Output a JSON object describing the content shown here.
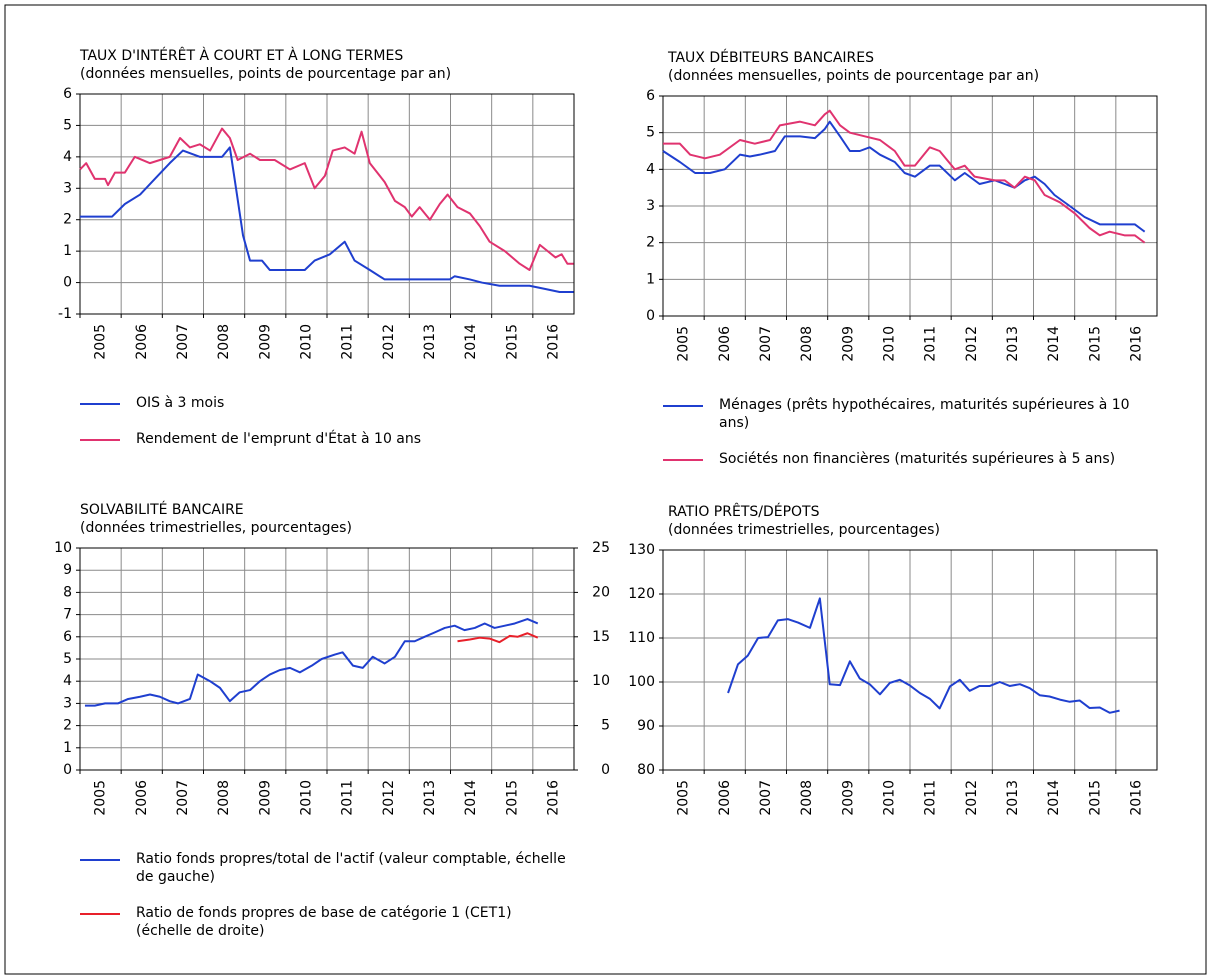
{
  "chart_data": [
    {
      "type": "line",
      "title": "TAUX D'INTÉRÊT À COURT ET À LONG TERMES",
      "subtitle": "(données mensuelles, points de pourcentage par an)",
      "xlim": [
        2005,
        2017
      ],
      "xticks": [
        2005,
        2006,
        2007,
        2008,
        2009,
        2010,
        2011,
        2012,
        2013,
        2014,
        2015,
        2016
      ],
      "ylim": [
        -1,
        6
      ],
      "yticks": [
        6,
        5,
        4,
        3,
        2,
        1,
        0,
        -1
      ],
      "grid": true,
      "legend": "bottom",
      "series": [
        {
          "name": "OIS à 3 mois",
          "color": "#1f3fcf",
          "x": [
            2005.0,
            2005.78,
            2006.09,
            2006.46,
            2006.82,
            2007.18,
            2007.5,
            2007.91,
            2008.45,
            2008.64,
            2008.79,
            2008.96,
            2009.13,
            2009.42,
            2009.61,
            2010.46,
            2010.7,
            2011.07,
            2011.43,
            2011.67,
            2012.04,
            2012.4,
            2013.98,
            2014.1,
            2014.47,
            2014.76,
            2015.19,
            2015.92,
            2016.29,
            2016.65,
            2016.99
          ],
          "values": [
            2.1,
            2.1,
            2.5,
            2.8,
            3.3,
            3.8,
            4.2,
            4.0,
            4.0,
            4.3,
            3.0,
            1.5,
            0.7,
            0.7,
            0.4,
            0.4,
            0.7,
            0.9,
            1.3,
            0.7,
            0.4,
            0.1,
            0.1,
            0.2,
            0.1,
            0.0,
            -0.1,
            -0.1,
            -0.2,
            -0.3,
            -0.3
          ]
        },
        {
          "name": "Rendement de l'emprunt d'État à 10 ans",
          "color": "#e0336f",
          "x": [
            2005.0,
            2005.15,
            2005.36,
            2005.61,
            2005.68,
            2005.85,
            2006.09,
            2006.33,
            2006.7,
            2006.94,
            2007.18,
            2007.43,
            2007.67,
            2007.91,
            2008.16,
            2008.45,
            2008.64,
            2008.83,
            2009.13,
            2009.37,
            2009.73,
            2010.1,
            2010.46,
            2010.7,
            2010.95,
            2011.14,
            2011.43,
            2011.67,
            2011.84,
            2012.04,
            2012.4,
            2012.65,
            2012.89,
            2013.06,
            2013.25,
            2013.5,
            2013.74,
            2013.93,
            2014.17,
            2014.47,
            2014.71,
            2014.95,
            2015.32,
            2015.68,
            2015.92,
            2016.17,
            2016.36,
            2016.55,
            2016.7,
            2016.84,
            2016.99
          ],
          "values": [
            3.6,
            3.8,
            3.3,
            3.3,
            3.1,
            3.5,
            3.5,
            4.0,
            3.8,
            3.9,
            4.0,
            4.6,
            4.3,
            4.4,
            4.2,
            4.9,
            4.6,
            3.9,
            4.1,
            3.9,
            3.9,
            3.6,
            3.8,
            3.0,
            3.4,
            4.2,
            4.3,
            4.1,
            4.8,
            3.8,
            3.2,
            2.6,
            2.4,
            2.1,
            2.4,
            2.0,
            2.5,
            2.8,
            2.4,
            2.2,
            1.8,
            1.3,
            1.0,
            0.6,
            0.4,
            1.2,
            1.0,
            0.8,
            0.9,
            0.6,
            0.6
          ]
        }
      ]
    },
    {
      "type": "line",
      "title": "TAUX DÉBITEURS BANCAIRES",
      "subtitle": "(données mensuelles, points de pourcentage par an)",
      "xlim": [
        2005,
        2017
      ],
      "xticks": [
        2005,
        2006,
        2007,
        2008,
        2009,
        2010,
        2011,
        2012,
        2013,
        2014,
        2015,
        2016
      ],
      "ylim": [
        0,
        6
      ],
      "yticks": [
        6,
        5,
        4,
        3,
        2,
        1,
        0
      ],
      "grid": true,
      "legend": "bottom",
      "series": [
        {
          "name": "Ménages (prêts hypothécaires, maturités supérieures à 10 ans)",
          "color": "#1f3fcf",
          "x": [
            2005.0,
            2005.41,
            2005.78,
            2006.14,
            2006.5,
            2006.87,
            2007.11,
            2007.35,
            2007.72,
            2007.96,
            2008.33,
            2008.69,
            2008.93,
            2009.05,
            2009.3,
            2009.54,
            2009.78,
            2010.02,
            2010.27,
            2010.63,
            2010.87,
            2011.12,
            2011.48,
            2011.72,
            2012.09,
            2012.33,
            2012.69,
            2013.06,
            2013.3,
            2013.54,
            2013.79,
            2014.03,
            2014.27,
            2014.51,
            2014.88,
            2015.24,
            2015.61,
            2015.85,
            2016.21,
            2016.46,
            2016.7
          ],
          "values": [
            4.5,
            4.2,
            3.9,
            3.9,
            4.0,
            4.4,
            4.35,
            4.4,
            4.5,
            4.9,
            4.9,
            4.85,
            5.1,
            5.3,
            4.9,
            4.5,
            4.5,
            4.6,
            4.4,
            4.2,
            3.9,
            3.8,
            4.1,
            4.1,
            3.7,
            3.9,
            3.6,
            3.7,
            3.6,
            3.5,
            3.7,
            3.8,
            3.6,
            3.3,
            3.0,
            2.7,
            2.5,
            2.5,
            2.5,
            2.5,
            2.3
          ]
        },
        {
          "name": "Sociétés non financières (maturités supérieures à 5 ans)",
          "color": "#e0336f",
          "x": [
            2005.0,
            2005.41,
            2005.66,
            2006.02,
            2006.38,
            2006.87,
            2007.23,
            2007.6,
            2007.84,
            2008.33,
            2008.69,
            2008.93,
            2009.05,
            2009.3,
            2009.54,
            2009.9,
            2010.27,
            2010.63,
            2010.87,
            2011.12,
            2011.48,
            2011.72,
            2012.09,
            2012.33,
            2012.57,
            2013.06,
            2013.3,
            2013.54,
            2013.79,
            2014.03,
            2014.27,
            2014.64,
            2015.0,
            2015.36,
            2015.61,
            2015.85,
            2016.21,
            2016.46,
            2016.7
          ],
          "values": [
            4.7,
            4.7,
            4.4,
            4.3,
            4.4,
            4.8,
            4.7,
            4.8,
            5.2,
            5.3,
            5.2,
            5.5,
            5.6,
            5.2,
            5.0,
            4.9,
            4.8,
            4.5,
            4.1,
            4.1,
            4.6,
            4.5,
            4.0,
            4.1,
            3.8,
            3.7,
            3.7,
            3.5,
            3.8,
            3.7,
            3.3,
            3.1,
            2.8,
            2.4,
            2.2,
            2.3,
            2.2,
            2.2,
            2.0
          ]
        }
      ]
    },
    {
      "type": "line",
      "title": "SOLVABILITÉ BANCAIRE",
      "subtitle": "(données trimestrielles, pourcentages)",
      "xlim": [
        2005,
        2017
      ],
      "xticks": [
        2005,
        2006,
        2007,
        2008,
        2009,
        2010,
        2011,
        2012,
        2013,
        2014,
        2015,
        2016
      ],
      "ylim": [
        0,
        10
      ],
      "yticks": [
        10,
        9,
        8,
        7,
        6,
        5,
        4,
        3,
        2,
        1,
        0
      ],
      "y2lim": [
        0,
        25
      ],
      "y2ticks": [
        25,
        20,
        15,
        10,
        5,
        0
      ],
      "grid": true,
      "legend": "bottom",
      "series": [
        {
          "name": "Ratio fonds propres/total de l'actif (valeur comptable, échelle de gauche)",
          "color": "#1f3fcf",
          "x": [
            2005.12,
            2005.36,
            2005.61,
            2005.92,
            2006.17,
            2006.46,
            2006.7,
            2006.94,
            2007.18,
            2007.38,
            2007.67,
            2007.86,
            2008.16,
            2008.4,
            2008.64,
            2008.88,
            2009.13,
            2009.37,
            2009.61,
            2009.85,
            2010.1,
            2010.34,
            2010.63,
            2010.87,
            2011.19,
            2011.38,
            2011.63,
            2011.87,
            2012.11,
            2012.4,
            2012.65,
            2012.89,
            2013.13,
            2013.37,
            2013.62,
            2013.86,
            2014.1,
            2014.34,
            2014.59,
            2014.83,
            2015.07,
            2015.32,
            2015.56,
            2015.87,
            2016.12
          ],
          "values": [
            2.9,
            2.9,
            3.0,
            3.0,
            3.2,
            3.3,
            3.4,
            3.3,
            3.1,
            3.0,
            3.2,
            4.3,
            4.0,
            3.7,
            3.1,
            3.5,
            3.6,
            4.0,
            4.3,
            4.5,
            4.6,
            4.4,
            4.7,
            5.0,
            5.2,
            5.3,
            4.7,
            4.6,
            5.1,
            4.8,
            5.1,
            5.8,
            5.8,
            6.0,
            6.2,
            6.4,
            6.5,
            6.3,
            6.4,
            6.6,
            6.4,
            6.5,
            6.6,
            6.8,
            6.6
          ]
        },
        {
          "name": "Ratio de fonds propres de base de catégorie 1 (CET1) (échelle de droite)",
          "color": "#e8202a",
          "axis": "y2",
          "x": [
            2014.17,
            2014.47,
            2014.71,
            2014.95,
            2015.19,
            2015.44,
            2015.63,
            2015.87,
            2016.12
          ],
          "values": [
            14.5,
            14.7,
            14.9,
            14.8,
            14.4,
            15.1,
            15.0,
            15.4,
            14.9
          ]
        }
      ]
    },
    {
      "type": "line",
      "title": "RATIO PRÊTS/DÉPOTS",
      "subtitle": "(données trimestrielles, pourcentages)",
      "xlim": [
        2005,
        2017
      ],
      "xticks": [
        2005,
        2006,
        2007,
        2008,
        2009,
        2010,
        2011,
        2012,
        2013,
        2014,
        2015,
        2016
      ],
      "ylim": [
        80,
        130
      ],
      "yticks": [
        130,
        120,
        110,
        100,
        90,
        80
      ],
      "grid": true,
      "series": [
        {
          "color": "#1f3fcf",
          "x": [
            2006.58,
            2006.82,
            2007.06,
            2007.31,
            2007.55,
            2007.79,
            2008.03,
            2008.28,
            2008.57,
            2008.81,
            2009.05,
            2009.3,
            2009.54,
            2009.78,
            2010.02,
            2010.27,
            2010.51,
            2010.75,
            2011.0,
            2011.24,
            2011.48,
            2011.72,
            2011.97,
            2012.21,
            2012.45,
            2012.69,
            2012.94,
            2013.18,
            2013.42,
            2013.67,
            2013.91,
            2014.15,
            2014.39,
            2014.64,
            2014.88,
            2015.12,
            2015.36,
            2015.61,
            2015.85,
            2016.09
          ],
          "values": [
            97.5,
            104,
            106,
            110,
            110.2,
            114,
            114.3,
            113.5,
            112.3,
            119,
            99.5,
            99.3,
            104.7,
            100.8,
            99.5,
            97.2,
            99.8,
            100.5,
            99.2,
            97.5,
            96.2,
            94,
            99,
            100.5,
            98,
            99.1,
            99.1,
            100,
            99.1,
            99.5,
            98.6,
            97,
            96.7,
            96,
            95.5,
            95.8,
            94.1,
            94.2,
            93,
            93.5
          ]
        }
      ]
    }
  ]
}
